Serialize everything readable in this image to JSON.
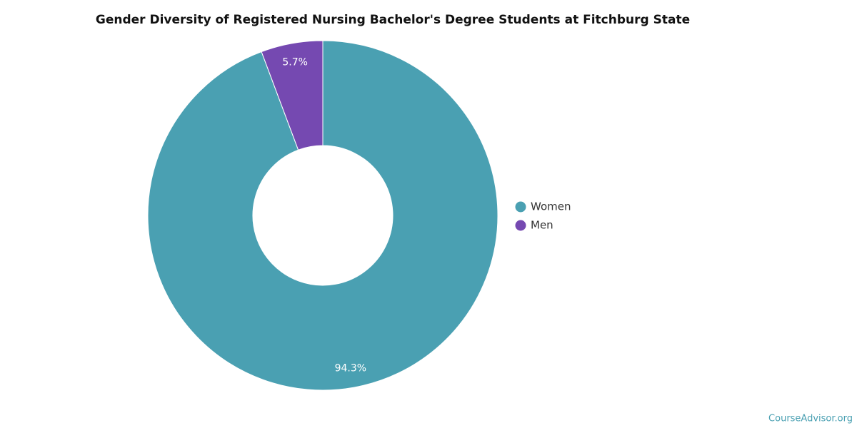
{
  "chart_data": {
    "type": "pie",
    "title": "Gender Diversity of Registered Nursing Bachelor's Degree Students at Fitchburg State",
    "categories": [
      "Women",
      "Men"
    ],
    "values": [
      94.3,
      5.7
    ],
    "value_labels": [
      "94.3%",
      "5.7%"
    ],
    "colors": [
      "#4aa0b2",
      "#7549b1"
    ],
    "donut": true,
    "legend": "right"
  },
  "footer": {
    "source": "CourseAdvisor.org"
  }
}
